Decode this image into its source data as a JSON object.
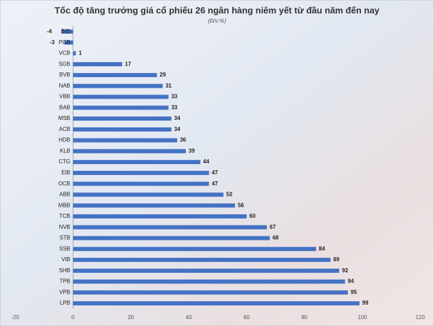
{
  "chart_data": {
    "type": "barh",
    "title": "Tốc độ tăng trưởng giá cổ phiếu 26 ngân hàng niêm yết từ đầu năm đến nay",
    "subtitle": "(Đ/v:%)",
    "categories": [
      "BID",
      "PGB",
      "VCB",
      "SGB",
      "BVB",
      "NAB",
      "VBB",
      "BAB",
      "MSB",
      "ACB",
      "HDB",
      "KLB",
      "CTG",
      "EIB",
      "OCB",
      "ABB",
      "MBB",
      "TCB",
      "NVB",
      "STB",
      "SSB",
      "VIB",
      "SHB",
      "TPB",
      "VPB",
      "LPB"
    ],
    "values": [
      -4,
      -3,
      1,
      17,
      29,
      31,
      33,
      33,
      34,
      34,
      36,
      39,
      44,
      47,
      47,
      52,
      56,
      60,
      67,
      68,
      84,
      89,
      92,
      94,
      95,
      99
    ],
    "color": "#4472c4",
    "xlim": [
      -20,
      120
    ],
    "xticks": [
      -20,
      0,
      20,
      40,
      60,
      80,
      100,
      120
    ]
  }
}
